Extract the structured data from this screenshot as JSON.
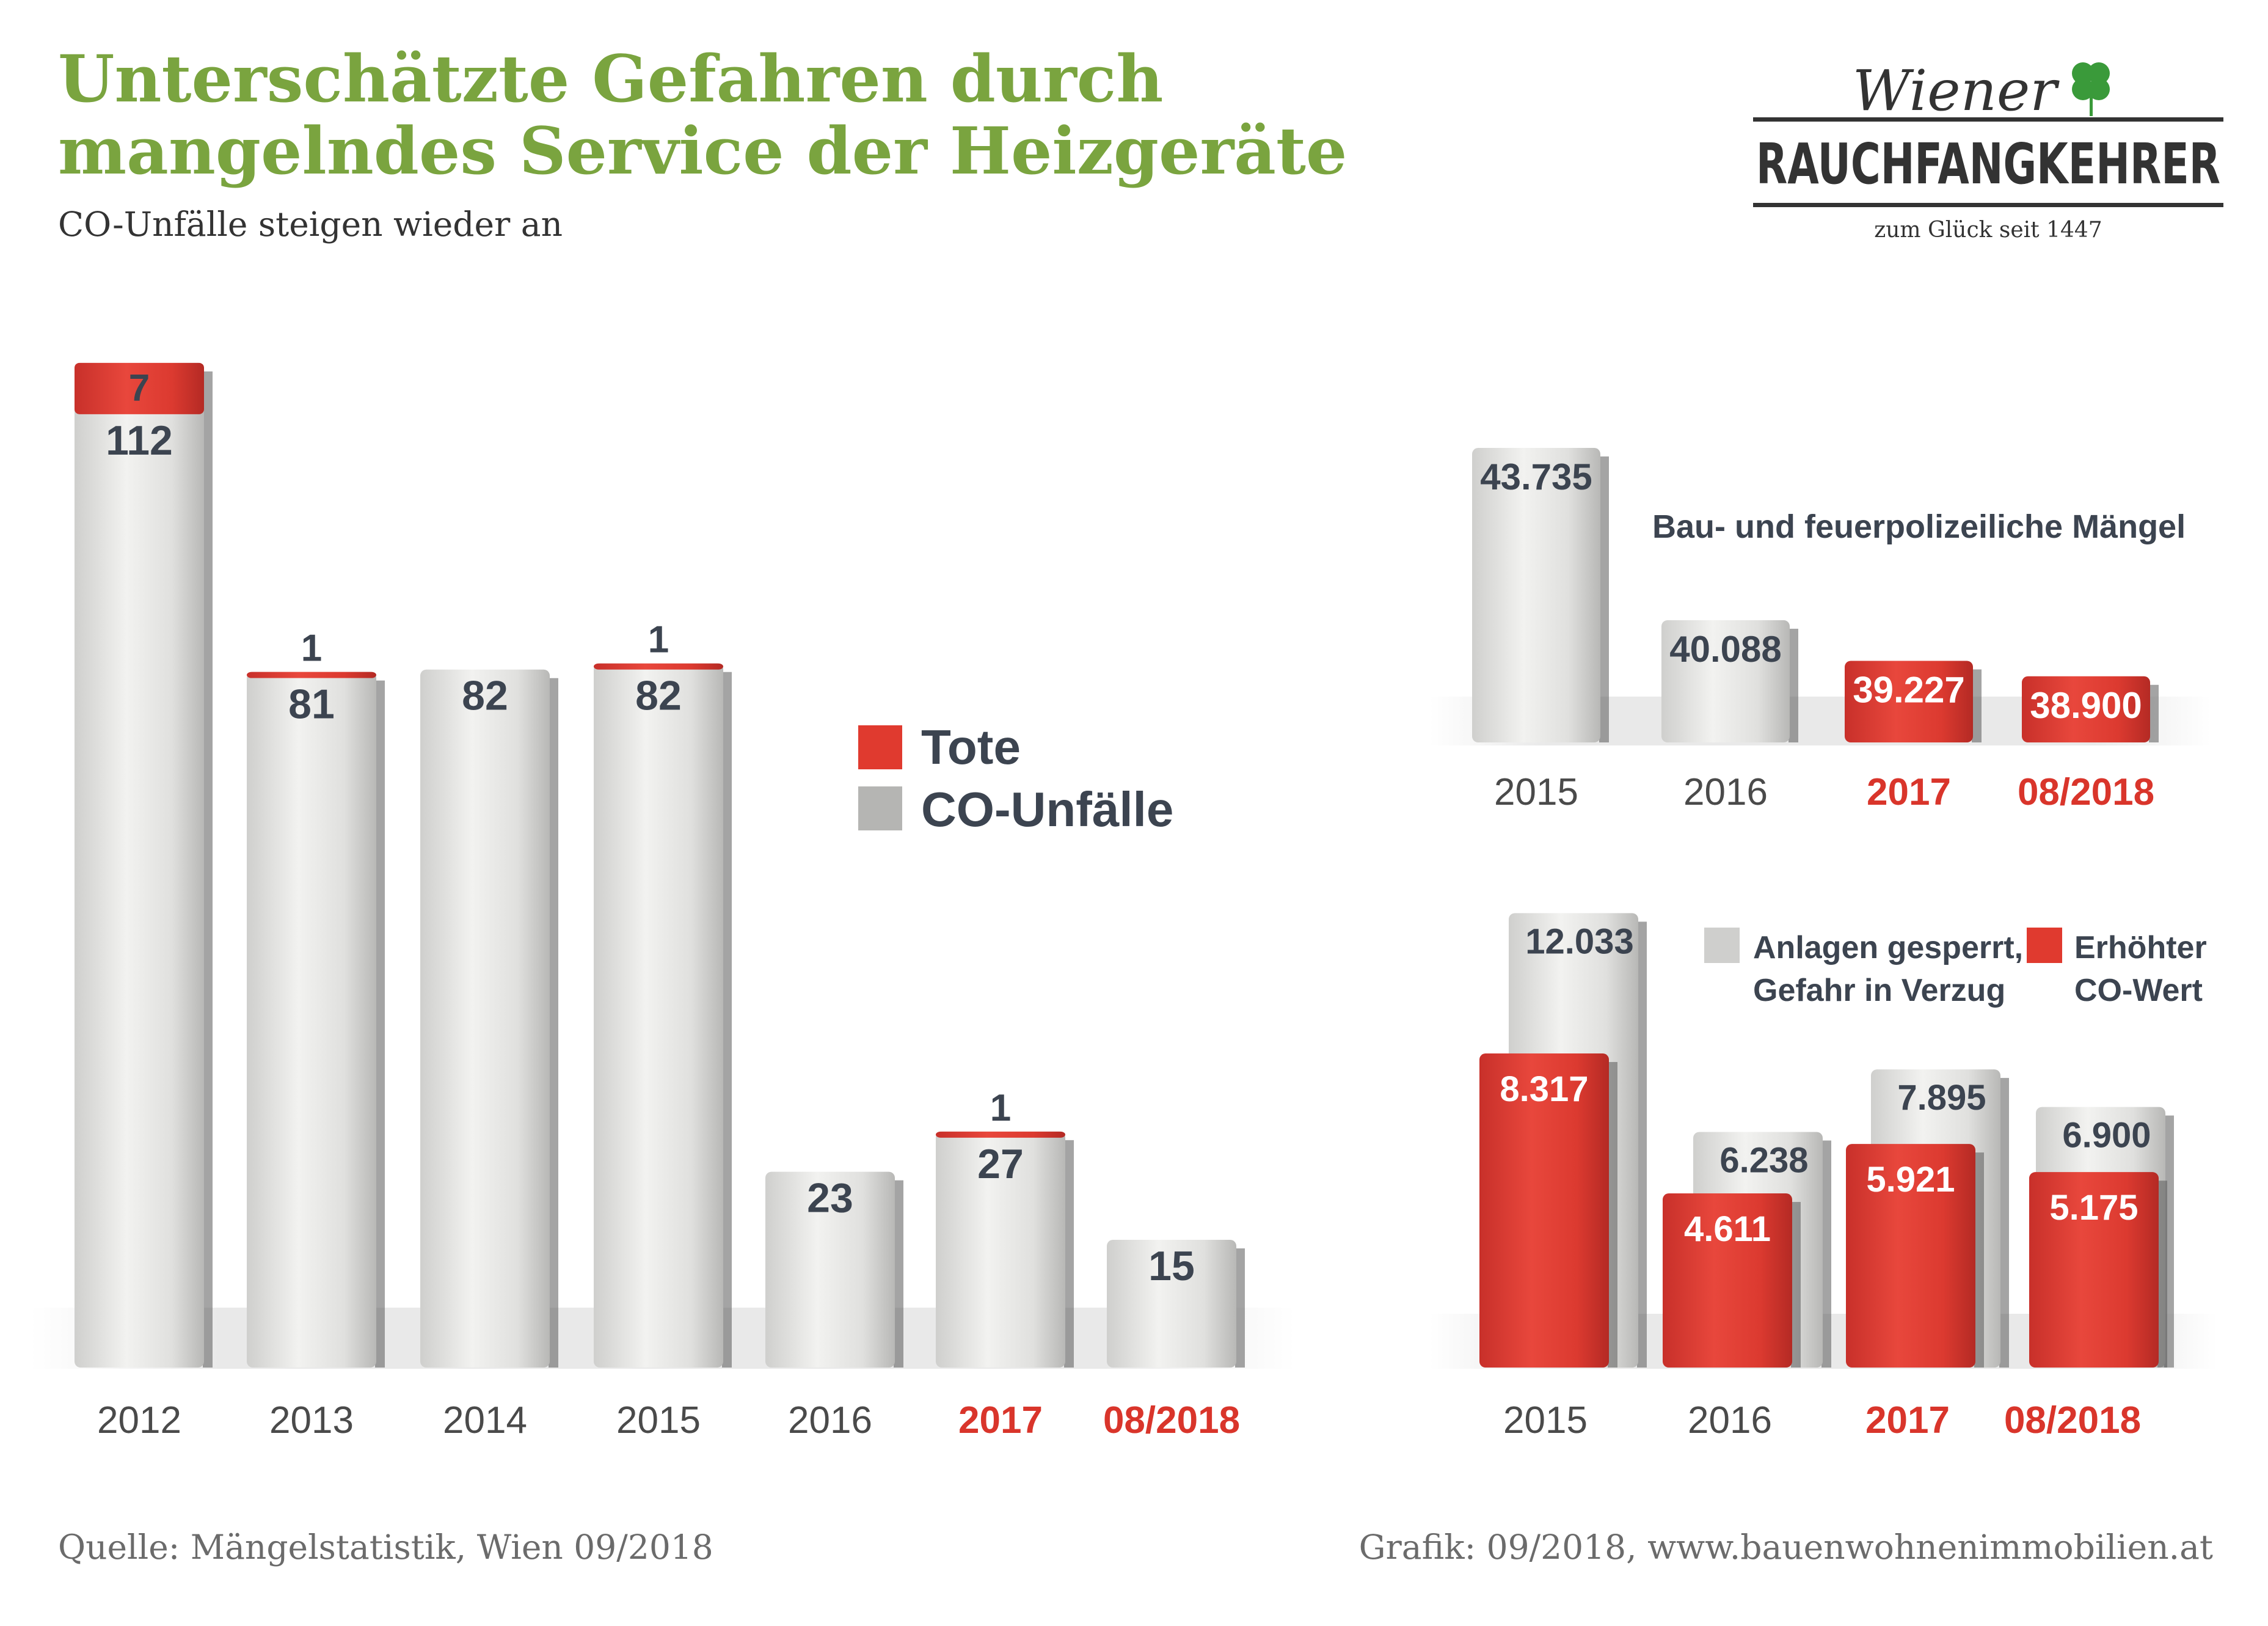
{
  "header": {
    "title_line1": "Unterschätzte Gefahren durch",
    "title_line2": "mangelndes Service der Heizgeräte",
    "subtitle": "CO-Unfälle steigen wieder an"
  },
  "logo": {
    "script": "Wiener",
    "main": "RAUCHFANGKEHRER",
    "tagline": "zum Glück seit 1447"
  },
  "footer": {
    "source": "Quelle: Mängelstatistik, Wien 09/2018",
    "credit": "Grafik: 09/2018, www.bauenwohnenimmobilien.at"
  },
  "colors": {
    "title_green": "#7aa43f",
    "red": "#e03a2f",
    "gray_bar": "#e8e8e6",
    "highlight_label": "#d9352b",
    "value_text": "#3c4450"
  },
  "chart_data": [
    {
      "type": "bar",
      "stacked": true,
      "categories": [
        "2012",
        "2013",
        "2014",
        "2015",
        "2016",
        "2017",
        "08/2018"
      ],
      "highlight_categories": [
        "2017",
        "08/2018"
      ],
      "series": [
        {
          "name": "CO-Unfälle",
          "values": [
            112,
            81,
            82,
            82,
            23,
            27,
            15
          ]
        },
        {
          "name": "Tote",
          "values": [
            7,
            1,
            null,
            1,
            null,
            1,
            null
          ]
        }
      ],
      "legend": [
        "Tote",
        "CO-Unfälle"
      ],
      "legend_position": "right",
      "grid": false
    },
    {
      "type": "bar",
      "title": "Bau- und feuerpolizeiliche Mängel",
      "categories": [
        "2015",
        "2016",
        "2017",
        "08/2018"
      ],
      "highlight_categories": [
        "2017",
        "08/2018"
      ],
      "series": [
        {
          "values": [
            43735,
            40088,
            39227,
            38900
          ]
        }
      ],
      "value_labels": [
        "43.735",
        "40.088",
        "39.227",
        "38.900"
      ],
      "grid": false
    },
    {
      "type": "bar",
      "categories": [
        "2015",
        "2016",
        "2017",
        "08/2018"
      ],
      "highlight_categories": [
        "2017",
        "08/2018"
      ],
      "series": [
        {
          "name": "Anlagen gesperrt, Gefahr in Verzug",
          "values": [
            12033,
            6238,
            7895,
            6900
          ],
          "labels": [
            "12.033",
            "6.238",
            "7.895",
            "6.900"
          ]
        },
        {
          "name": "Erhöhter CO-Wert",
          "values": [
            8317,
            4611,
            5921,
            5175
          ],
          "labels": [
            "8.317",
            "4.611",
            "5.921",
            "5.175"
          ]
        }
      ],
      "legend": [
        "Anlagen gesperrt, Gefahr in Verzug",
        "Erhöhter CO-Wert"
      ],
      "legend_position": "top-right",
      "grid": false
    }
  ]
}
